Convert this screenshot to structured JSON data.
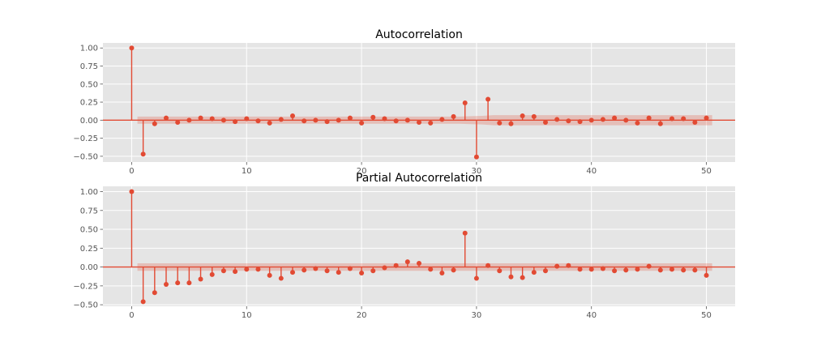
{
  "chart_data": [
    {
      "type": "stem",
      "title": "Autocorrelation",
      "xlabel": "",
      "ylabel": "",
      "xlim": [
        -2.5,
        52.5
      ],
      "ylim": [
        -0.58,
        1.07
      ],
      "xticks": [
        0,
        10,
        20,
        30,
        40,
        50
      ],
      "yticks": [
        1.0,
        0.75,
        0.5,
        0.25,
        0.0,
        -0.25,
        -0.5
      ],
      "ytick_labels": [
        "1.00",
        "0.75",
        "0.50",
        "0.25",
        "0.00",
        "−0.25",
        "−0.50"
      ],
      "grid": true,
      "confidence_band": {
        "x": [
          0.5,
          28.5,
          29.5,
          30.5,
          31.5,
          50.5
        ],
        "upper": [
          0.05,
          0.05,
          0.055,
          0.06,
          0.07,
          0.07
        ],
        "lower": [
          -0.05,
          -0.05,
          -0.055,
          -0.06,
          -0.07,
          -0.07
        ]
      },
      "x": [
        0,
        1,
        2,
        3,
        4,
        5,
        6,
        7,
        8,
        9,
        10,
        11,
        12,
        13,
        14,
        15,
        16,
        17,
        18,
        19,
        20,
        21,
        22,
        23,
        24,
        25,
        26,
        27,
        28,
        29,
        30,
        31,
        32,
        33,
        34,
        35,
        36,
        37,
        38,
        39,
        40,
        41,
        42,
        43,
        44,
        45,
        46,
        47,
        48,
        49,
        50
      ],
      "values": [
        1.0,
        -0.47,
        -0.05,
        0.03,
        -0.03,
        0.0,
        0.03,
        0.02,
        0.0,
        -0.02,
        0.02,
        -0.01,
        -0.04,
        0.01,
        0.06,
        -0.01,
        0.0,
        -0.02,
        0.0,
        0.03,
        -0.04,
        0.04,
        0.02,
        -0.01,
        0.0,
        -0.03,
        -0.04,
        0.01,
        0.05,
        0.24,
        -0.51,
        0.29,
        -0.04,
        -0.05,
        0.06,
        0.05,
        -0.03,
        0.01,
        -0.01,
        -0.02,
        0.0,
        0.01,
        0.03,
        0.0,
        -0.04,
        0.03,
        -0.05,
        0.02,
        0.02,
        -0.03,
        0.03
      ]
    },
    {
      "type": "stem",
      "title": "Partial Autocorrelation",
      "xlabel": "",
      "ylabel": "",
      "xlim": [
        -2.5,
        52.5
      ],
      "ylim": [
        -0.52,
        1.07
      ],
      "xticks": [
        0,
        10,
        20,
        30,
        40,
        50
      ],
      "yticks": [
        1.0,
        0.75,
        0.5,
        0.25,
        0.0,
        -0.25,
        -0.5
      ],
      "ytick_labels": [
        "1.00",
        "0.75",
        "0.50",
        "0.25",
        "0.00",
        "−0.25",
        "−0.50"
      ],
      "grid": true,
      "confidence_band": {
        "x": [
          0.5,
          50.5
        ],
        "upper": [
          0.05,
          0.05
        ],
        "lower": [
          -0.05,
          -0.05
        ]
      },
      "x": [
        0,
        1,
        2,
        3,
        4,
        5,
        6,
        7,
        8,
        9,
        10,
        11,
        12,
        13,
        14,
        15,
        16,
        17,
        18,
        19,
        20,
        21,
        22,
        23,
        24,
        25,
        26,
        27,
        28,
        29,
        30,
        31,
        32,
        33,
        34,
        35,
        36,
        37,
        38,
        39,
        40,
        41,
        42,
        43,
        44,
        45,
        46,
        47,
        48,
        49,
        50
      ],
      "values": [
        1.0,
        -0.46,
        -0.34,
        -0.23,
        -0.21,
        -0.21,
        -0.16,
        -0.1,
        -0.05,
        -0.06,
        -0.03,
        -0.03,
        -0.11,
        -0.15,
        -0.07,
        -0.04,
        -0.02,
        -0.05,
        -0.07,
        -0.02,
        -0.08,
        -0.05,
        -0.01,
        0.02,
        0.07,
        0.05,
        -0.03,
        -0.08,
        -0.04,
        0.45,
        -0.15,
        0.02,
        -0.05,
        -0.13,
        -0.14,
        -0.07,
        -0.05,
        0.01,
        0.02,
        -0.03,
        -0.03,
        -0.02,
        -0.05,
        -0.04,
        -0.03,
        0.01,
        -0.04,
        -0.03,
        -0.04,
        -0.04,
        -0.11
      ]
    }
  ]
}
